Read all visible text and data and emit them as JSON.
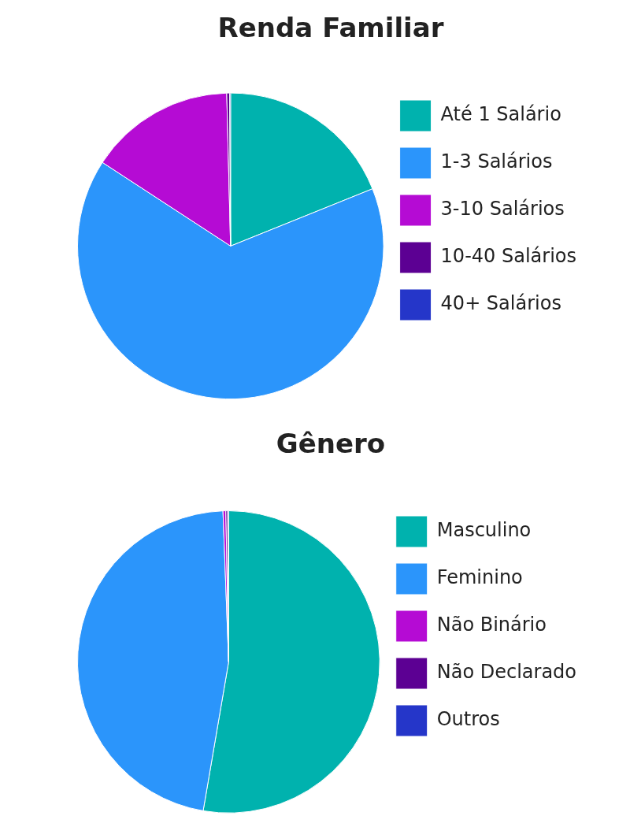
{
  "chart_data": [
    {
      "type": "pie",
      "title": "Renda Familiar",
      "categories": [
        "Até 1 Salário",
        "1-3 Salários",
        "3-10 Salários",
        "10-40 Salários",
        "40+ Salários"
      ],
      "values": [
        18.9,
        65.3,
        15.4,
        0.3,
        0.1
      ],
      "colors": [
        "#00b2ae",
        "#2b95fb",
        "#b50bd4",
        "#5c0093",
        "#2536c9"
      ],
      "legend": "right"
    },
    {
      "type": "pie",
      "title": "Gênero",
      "categories": [
        "Masculino",
        "Feminino",
        "Não Binário",
        "Não Declarado",
        "Outros"
      ],
      "values": [
        52.7,
        46.7,
        0.3,
        0.2,
        0.1
      ],
      "colors": [
        "#00b2ae",
        "#2b95fb",
        "#b50bd4",
        "#5c0093",
        "#2536c9"
      ],
      "legend": "right"
    }
  ]
}
